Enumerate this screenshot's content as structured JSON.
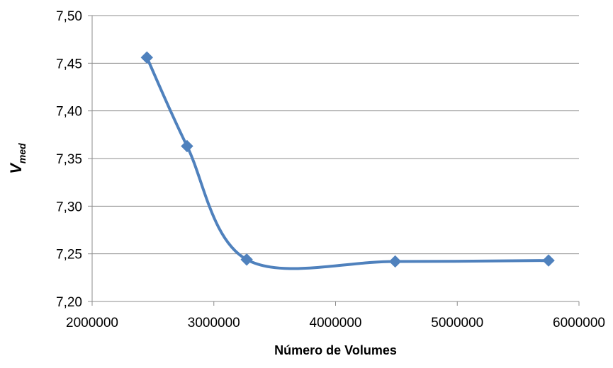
{
  "chart_data": {
    "type": "line",
    "smooth": true,
    "marker": "diamond",
    "grid": {
      "y": true,
      "x": false
    },
    "legend": "none",
    "xlabel": "Número de Volumes",
    "ylabel_main": "V",
    "ylabel_sub": "med",
    "xlim": [
      2000000,
      6000000
    ],
    "ylim": [
      7.2,
      7.5
    ],
    "x_ticks": [
      2000000,
      3000000,
      4000000,
      5000000,
      6000000
    ],
    "x_tick_labels": [
      "2000000",
      "3000000",
      "4000000",
      "5000000",
      "6000000"
    ],
    "y_ticks": [
      7.2,
      7.25,
      7.3,
      7.35,
      7.4,
      7.45,
      7.5
    ],
    "y_tick_labels": [
      "7,20",
      "7,25",
      "7,30",
      "7,35",
      "7,40",
      "7,45",
      "7,50"
    ],
    "series": [
      {
        "color": "#4f81bd",
        "points": [
          {
            "x": 2450000,
            "y": 7.456
          },
          {
            "x": 2780000,
            "y": 7.363
          },
          {
            "x": 3270000,
            "y": 7.244
          },
          {
            "x": 4490000,
            "y": 7.242
          },
          {
            "x": 5750000,
            "y": 7.243
          }
        ]
      }
    ]
  }
}
